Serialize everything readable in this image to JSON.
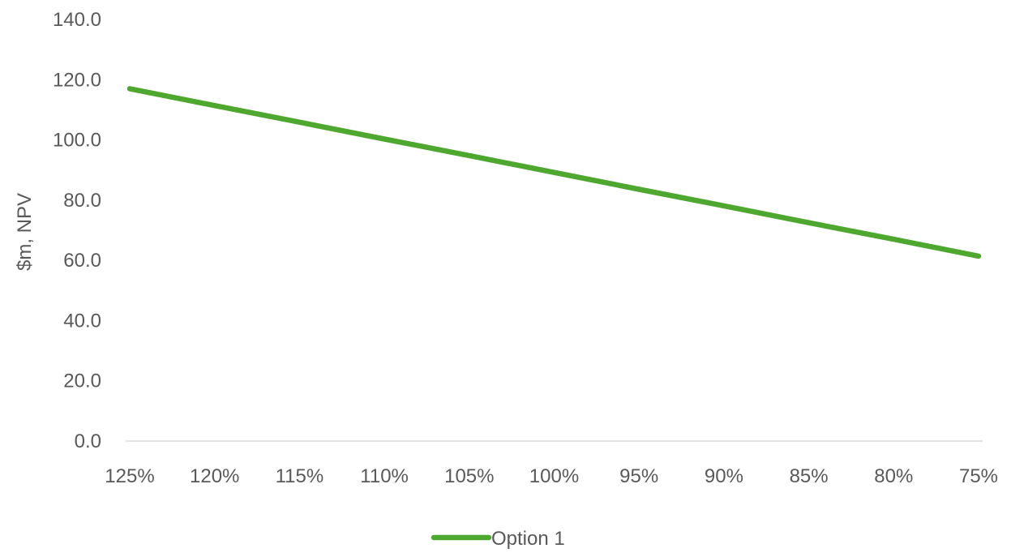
{
  "chart_data": {
    "type": "line",
    "x": [
      "125%",
      "120%",
      "115%",
      "110%",
      "105%",
      "100%",
      "95%",
      "90%",
      "85%",
      "80%",
      "75%"
    ],
    "series": [
      {
        "name": "Option 1",
        "values": [
          117.0,
          111.4,
          105.9,
          100.3,
          94.8,
          89.2,
          83.6,
          78.1,
          72.5,
          67.0,
          61.4
        ]
      }
    ],
    "xlabel": "",
    "ylabel": "$m, NPV",
    "ylim": [
      0,
      140
    ],
    "yticks": [
      "0.0",
      "20.0",
      "40.0",
      "60.0",
      "80.0",
      "100.0",
      "120.0",
      "140.0"
    ],
    "grid": false,
    "legend_position": "bottom",
    "colors": {
      "series": "#4ea72e",
      "axis": "#d9d9d9",
      "text": "#595959"
    }
  }
}
